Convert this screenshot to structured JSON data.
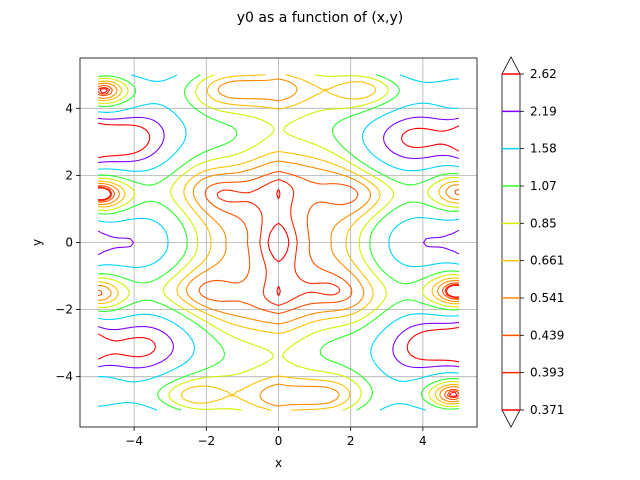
{
  "chart_data": {
    "type": "contour",
    "title": "y0 as a function of (x,y)",
    "xlabel": "x",
    "ylabel": "y",
    "xlim": [
      -5.5,
      5.5
    ],
    "ylim": [
      -5.5,
      5.5
    ],
    "x_ticks": [
      -4,
      -2,
      0,
      2,
      4
    ],
    "y_ticks": [
      -4,
      -2,
      0,
      2,
      4
    ],
    "x_tick_labels": [
      "−4",
      "−2",
      "0",
      "2",
      "4"
    ],
    "y_tick_labels": [
      "−4",
      "−2",
      "0",
      "2",
      "4"
    ],
    "grid": true,
    "domain": {
      "x": [
        -5,
        5
      ],
      "y": [
        -5,
        5
      ]
    },
    "colorbar": {
      "extend": "both",
      "levels": [
        0.371,
        0.393,
        0.439,
        0.541,
        0.661,
        0.85,
        1.07,
        1.58,
        2.19,
        2.62
      ],
      "labels": [
        "0.371",
        "0.393",
        "0.439",
        "0.541",
        "0.661",
        "0.85",
        "1.07",
        "1.58",
        "2.19",
        "2.62"
      ],
      "colors": [
        "#ff0000",
        "#ff2a00",
        "#ff5500",
        "#ff8c00",
        "#ffc000",
        "#d4f000",
        "#2aff2a",
        "#00d4ff",
        "#8000ff",
        "#ff0000"
      ]
    }
  }
}
